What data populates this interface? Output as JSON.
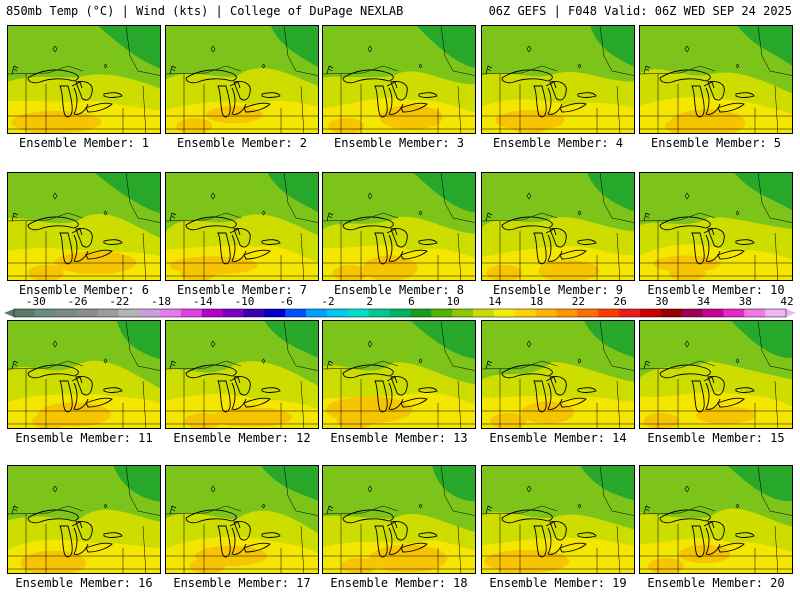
{
  "header": {
    "left": "850mb Temp (°C) | Wind (kts) | College of DuPage NEXLAB",
    "right": "06Z GEFS | F048 Valid: 06Z WED SEP 24 2025"
  },
  "members": [
    {
      "label": "Ensemble Member: 1",
      "seed": 1
    },
    {
      "label": "Ensemble Member: 2",
      "seed": 2
    },
    {
      "label": "Ensemble Member: 3",
      "seed": 3
    },
    {
      "label": "Ensemble Member: 4",
      "seed": 4
    },
    {
      "label": "Ensemble Member: 5",
      "seed": 5
    },
    {
      "label": "Ensemble Member: 6",
      "seed": 6
    },
    {
      "label": "Ensemble Member: 7",
      "seed": 7
    },
    {
      "label": "Ensemble Member: 8",
      "seed": 8
    },
    {
      "label": "Ensemble Member: 9",
      "seed": 9
    },
    {
      "label": "Ensemble Member: 10",
      "seed": 10
    },
    {
      "label": "Ensemble Member: 11",
      "seed": 11
    },
    {
      "label": "Ensemble Member: 12",
      "seed": 12
    },
    {
      "label": "Ensemble Member: 13",
      "seed": 13
    },
    {
      "label": "Ensemble Member: 14",
      "seed": 14
    },
    {
      "label": "Ensemble Member: 15",
      "seed": 15
    },
    {
      "label": "Ensemble Member: 16",
      "seed": 16
    },
    {
      "label": "Ensemble Member: 17",
      "seed": 17
    },
    {
      "label": "Ensemble Member: 18",
      "seed": 18
    },
    {
      "label": "Ensemble Member: 19",
      "seed": 19
    },
    {
      "label": "Ensemble Member: 20",
      "seed": 20
    }
  ],
  "colorbar": {
    "ticks": [
      "-30",
      "-26",
      "-22",
      "-18",
      "-14",
      "-10",
      "-6",
      "-2",
      "2",
      "6",
      "10",
      "14",
      "18",
      "22",
      "26",
      "30",
      "34",
      "38",
      "42"
    ],
    "colors": [
      "#5c7a6a",
      "#6b8c7c",
      "#7a8a8a",
      "#8c8c8c",
      "#9c9c9c",
      "#b4b4b4",
      "#c8a0e0",
      "#e27ce8",
      "#e040e0",
      "#b400c8",
      "#7800c8",
      "#3c00b4",
      "#0000c8",
      "#0050ff",
      "#00a0ff",
      "#00c8f0",
      "#00e0c8",
      "#00c890",
      "#00b464",
      "#14a01e",
      "#50b400",
      "#8cc800",
      "#c8dc00",
      "#f0f000",
      "#ffd200",
      "#ffb400",
      "#ff9600",
      "#ff6e00",
      "#ff3c00",
      "#e61e1e",
      "#c80000",
      "#960000",
      "#a00050",
      "#c80096",
      "#e628c8",
      "#f078e6",
      "#f0b4f0"
    ]
  },
  "field_colors": {
    "cold": "#27a82a",
    "mid": "#7cc31a",
    "warm": "#cddd00",
    "hot": "#f5e600",
    "hottest": "#f7c400"
  }
}
